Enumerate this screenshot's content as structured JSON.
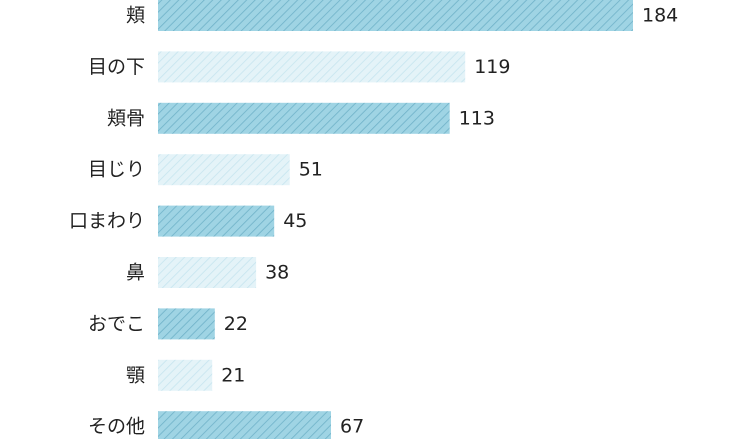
{
  "chart_data": {
    "type": "bar",
    "orientation": "horizontal",
    "categories": [
      "頬",
      "目の下",
      "頬骨",
      "目じり",
      "口まわり",
      "鼻",
      "おでこ",
      "顎",
      "その他"
    ],
    "values": [
      184,
      119,
      113,
      51,
      45,
      38,
      22,
      21,
      67
    ],
    "xlim": [
      0,
      184
    ],
    "grid": false,
    "legend": "none",
    "colors": {
      "dark_fill": "#9fd4e4",
      "dark_hatch": "#6fb2c8",
      "light_fill": "#e4f3f8",
      "light_hatch": "#c6e5ef",
      "text": "#222222"
    }
  }
}
